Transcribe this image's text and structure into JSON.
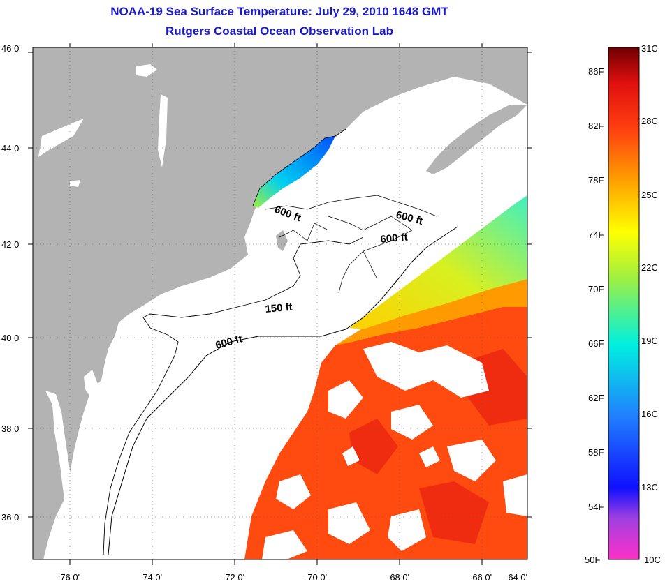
{
  "title": "NOAA-19 Sea Surface Temperature:  July 29, 2010 1648 GMT",
  "subtitle": "Rutgers Coastal Ocean Observation Lab",
  "lat_ticks": [
    "46 0'",
    "44 0'",
    "42 0'",
    "40 0'",
    "38 0'",
    "36 0'"
  ],
  "lon_ticks": [
    "-76 0'",
    "-74 0'",
    "-72 0'",
    "-70 0'",
    "-68 0'",
    "-66 0'",
    "-64 0'"
  ],
  "contour_labels": [
    "600 ft",
    "600 ft",
    "600 ft",
    "150 ft",
    "600 ft"
  ],
  "colorbar": {
    "fahrenheit": [
      "86F",
      "82F",
      "78F",
      "74F",
      "70F",
      "66F",
      "62F",
      "58F",
      "54F",
      "50F"
    ],
    "celsius": [
      "31C",
      "28C",
      "25C",
      "22C",
      "19C",
      "16C",
      "13C",
      "10C"
    ]
  },
  "colors": {
    "title": "#1a1acc",
    "land": "#b3b3b3",
    "ocean_no_data": "#ffffff",
    "warm_water": "#ff4a10",
    "hot_water": "#e82010",
    "mid_water": "#ff9a00",
    "cool_water": "#c8f020",
    "cold_water": "#1a6cff"
  }
}
